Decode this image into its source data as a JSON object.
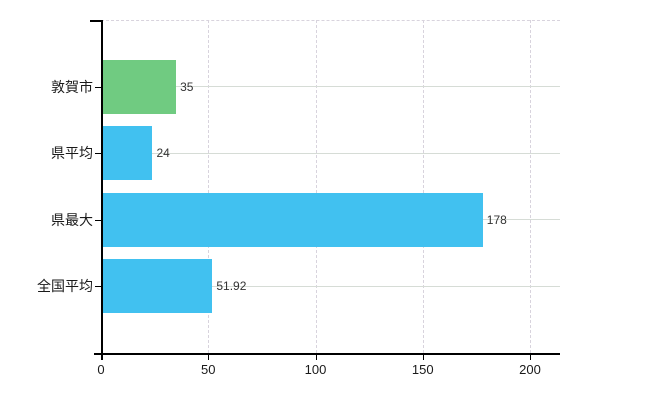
{
  "chart_data": {
    "type": "bar",
    "orientation": "horizontal",
    "title": "",
    "xlabel": "",
    "ylabel": "",
    "categories": [
      "敦賀市",
      "県平均",
      "県最大",
      "全国平均"
    ],
    "values": [
      35,
      24,
      178,
      51.92
    ],
    "value_labels": [
      "35",
      "24",
      "178",
      "51.92"
    ],
    "bar_colors": [
      "#70cb81",
      "#41c1f0",
      "#41c1f0",
      "#41c1f0"
    ],
    "xlim": [
      0,
      200
    ],
    "xticks": [
      0,
      50,
      100,
      150,
      200
    ],
    "xtick_labels": [
      "0",
      "50",
      "100",
      "150",
      "200"
    ],
    "grid": true,
    "legend": false
  },
  "colors": {
    "background": "#ffffff",
    "axis": "#000000",
    "h_gridline": "#d6dcd6",
    "v_gridline": "#d8d3dd",
    "top_border": "#d8d3dd",
    "category_text": "#1a1a1a",
    "value_text": "#333333",
    "tick_text": "#1a1a1a"
  }
}
